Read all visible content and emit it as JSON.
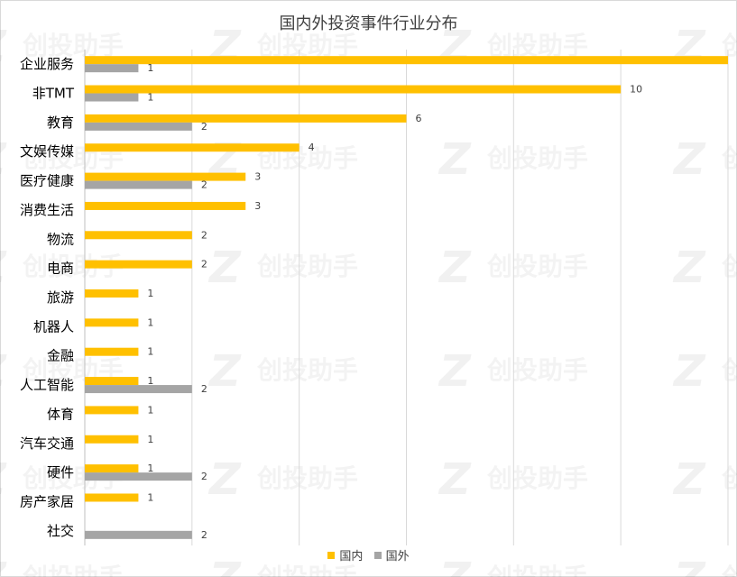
{
  "chart_data": {
    "type": "bar",
    "orientation": "horizontal",
    "title": "国内外投资事件行业分布",
    "categories": [
      "企业服务",
      "非TMT",
      "教育",
      "文娱传媒",
      "医疗健康",
      "消费生活",
      "物流",
      "电商",
      "旅游",
      "机器人",
      "金融",
      "人工智能",
      "体育",
      "汽车交通",
      "硬件",
      "房产家居",
      "社交"
    ],
    "series": [
      {
        "name": "国内",
        "color": "#FFC000",
        "values": [
          12,
          10,
          6,
          4,
          3,
          3,
          2,
          2,
          1,
          1,
          1,
          1,
          1,
          1,
          1,
          1,
          null
        ]
      },
      {
        "name": "国外",
        "color": "#A5A5A5",
        "values": [
          1,
          1,
          2,
          null,
          2,
          null,
          null,
          null,
          null,
          null,
          null,
          2,
          null,
          null,
          2,
          null,
          2
        ]
      }
    ],
    "xlim": [
      0,
      12
    ],
    "grid": true,
    "legend_position": "bottom"
  },
  "watermark": {
    "text": "创投助手",
    "mark": "Z"
  }
}
